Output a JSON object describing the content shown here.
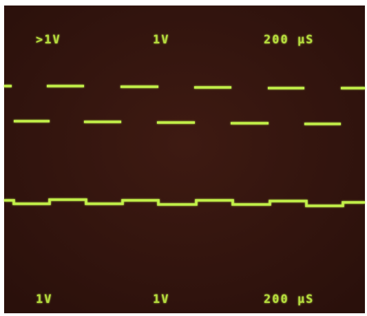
{
  "top_readout": {
    "channel_1": ">1V",
    "channel_2": "1V",
    "timebase": "200 µS"
  },
  "bottom_readout": {
    "channel_1": "1V",
    "channel_2": "1V",
    "timebase": "200 µS"
  }
}
